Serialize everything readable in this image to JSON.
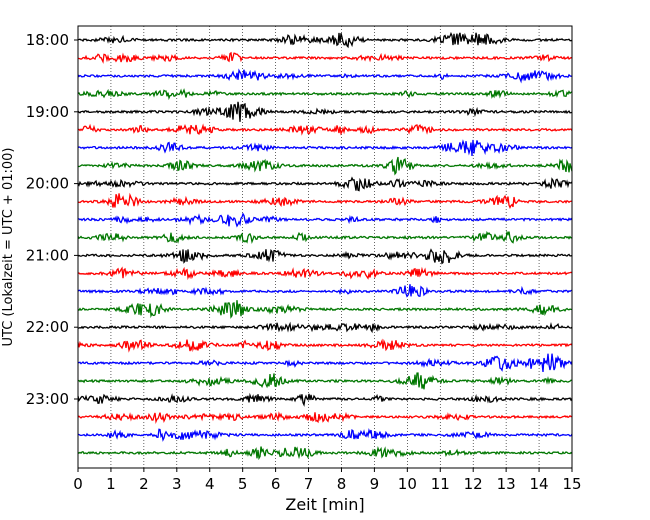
{
  "chart_data": {
    "type": "line",
    "title": "",
    "xlabel": "Zeit  [min]",
    "ylabel": "UTC (Lokalzeit = UTC + 01:00)",
    "xlim": [
      0,
      15
    ],
    "x_ticks": [
      0,
      1,
      2,
      3,
      4,
      5,
      6,
      7,
      8,
      9,
      10,
      11,
      12,
      13,
      14,
      15
    ],
    "y_tick_labels": [
      "18:00",
      "19:00",
      "20:00",
      "21:00",
      "22:00",
      "23:00"
    ],
    "grid": "vertical dotted lines at each minute",
    "trace_start_times": [
      "18:00",
      "18:15",
      "18:30",
      "18:45",
      "19:00",
      "19:15",
      "19:30",
      "19:45",
      "20:00",
      "20:15",
      "20:30",
      "20:45",
      "21:00",
      "21:15",
      "21:30",
      "21:45",
      "22:00",
      "22:15",
      "22:30",
      "22:45",
      "23:00",
      "23:15",
      "23:30",
      "23:45"
    ],
    "trace_minutes_per_line": 15,
    "series_colors": [
      "#000000",
      "#ff0000",
      "#0000ff",
      "#007700"
    ]
  }
}
